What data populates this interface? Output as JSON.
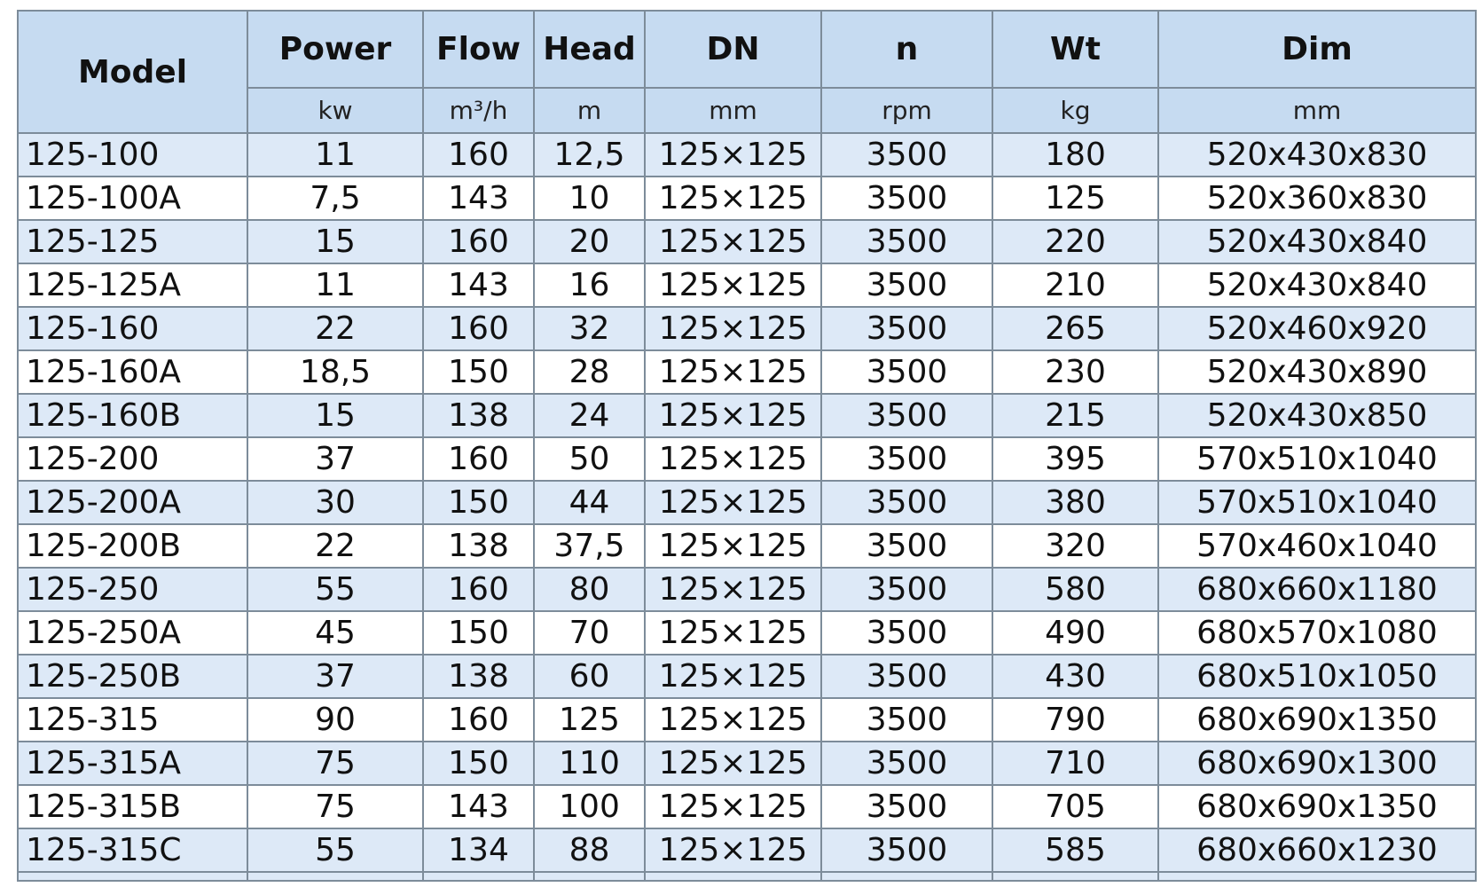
{
  "headers": [
    "Model",
    "Power",
    "Flow",
    "Head",
    "DN",
    "n",
    "Wt",
    "Dim"
  ],
  "units": [
    "kw",
    "m³/h",
    "m",
    "mm",
    "rpm",
    "kg",
    "mm"
  ],
  "rows": [
    [
      "125-100",
      "11",
      "160",
      "12,5",
      "125×125",
      "3500",
      "180",
      "520x430x830"
    ],
    [
      "125-100A",
      "7,5",
      "143",
      "10",
      "125×125",
      "3500",
      "125",
      "520x360x830"
    ],
    [
      "125-125",
      "15",
      "160",
      "20",
      "125×125",
      "3500",
      "220",
      "520x430x840"
    ],
    [
      "125-125A",
      "11",
      "143",
      "16",
      "125×125",
      "3500",
      "210",
      "520x430x840"
    ],
    [
      "125-160",
      "22",
      "160",
      "32",
      "125×125",
      "3500",
      "265",
      "520x460x920"
    ],
    [
      "125-160A",
      "18,5",
      "150",
      "28",
      "125×125",
      "3500",
      "230",
      "520x430x890"
    ],
    [
      "125-160B",
      "15",
      "138",
      "24",
      "125×125",
      "3500",
      "215",
      "520x430x850"
    ],
    [
      "125-200",
      "37",
      "160",
      "50",
      "125×125",
      "3500",
      "395",
      "570x510x1040"
    ],
    [
      "125-200A",
      "30",
      "150",
      "44",
      "125×125",
      "3500",
      "380",
      "570x510x1040"
    ],
    [
      "125-200B",
      "22",
      "138",
      "37,5",
      "125×125",
      "3500",
      "320",
      "570x460x1040"
    ],
    [
      "125-250",
      "55",
      "160",
      "80",
      "125×125",
      "3500",
      "580",
      "680x660x1180"
    ],
    [
      "125-250A",
      "45",
      "150",
      "70",
      "125×125",
      "3500",
      "490",
      "680x570x1080"
    ],
    [
      "125-250B",
      "37",
      "138",
      "60",
      "125×125",
      "3500",
      "430",
      "680x510x1050"
    ],
    [
      "125-315",
      "90",
      "160",
      "125",
      "125×125",
      "3500",
      "790",
      "680x690x1350"
    ],
    [
      "125-315A",
      "75",
      "150",
      "110",
      "125×125",
      "3500",
      "710",
      "680x690x1300"
    ],
    [
      "125-315B",
      "75",
      "143",
      "100",
      "125×125",
      "3500",
      "705",
      "680x690x1350"
    ],
    [
      "125-315C",
      "55",
      "134",
      "88",
      "125×125",
      "3500",
      "585",
      "680x660x1230"
    ]
  ]
}
